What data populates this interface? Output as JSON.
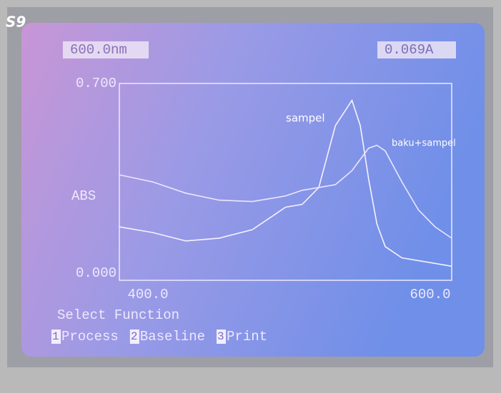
{
  "screen": {
    "label": "S9",
    "wavelength": "600.0nm",
    "absorbance": "0.069A",
    "menu": {
      "title": "Select Function",
      "items": [
        {
          "key": "1",
          "label": "Process"
        },
        {
          "key": "2",
          "label": "Baseline"
        },
        {
          "key": "3",
          "label": "Print"
        }
      ]
    }
  },
  "chart_data": {
    "type": "line",
    "ylabel": "ABS",
    "x": [
      400,
      420,
      440,
      460,
      480,
      490,
      500,
      510,
      520,
      530,
      540,
      545,
      550,
      555,
      560,
      570,
      580,
      590,
      600
    ],
    "series": [
      {
        "name": "sampel",
        "color": "#f6f2ff",
        "values": [
          0.19,
          0.17,
          0.14,
          0.15,
          0.18,
          0.22,
          0.26,
          0.27,
          0.33,
          0.55,
          0.64,
          0.55,
          0.36,
          0.2,
          0.12,
          0.08,
          0.07,
          0.06,
          0.05
        ]
      },
      {
        "name": "baku+sampel",
        "color": "#ece6ff",
        "values": [
          0.375,
          0.35,
          0.31,
          0.285,
          0.28,
          0.29,
          0.3,
          0.32,
          0.33,
          0.34,
          0.39,
          0.43,
          0.47,
          0.48,
          0.46,
          0.35,
          0.25,
          0.19,
          0.15
        ]
      }
    ],
    "xlim": [
      400,
      600
    ],
    "ylim": [
      0,
      0.7
    ],
    "xticks": [
      {
        "value": 400,
        "label": "400.0"
      },
      {
        "value": 600,
        "label": "600.0"
      }
    ],
    "yticks": [
      {
        "value": 0,
        "label": "0.000"
      },
      {
        "value": 0.7,
        "label": "0.700"
      }
    ]
  }
}
